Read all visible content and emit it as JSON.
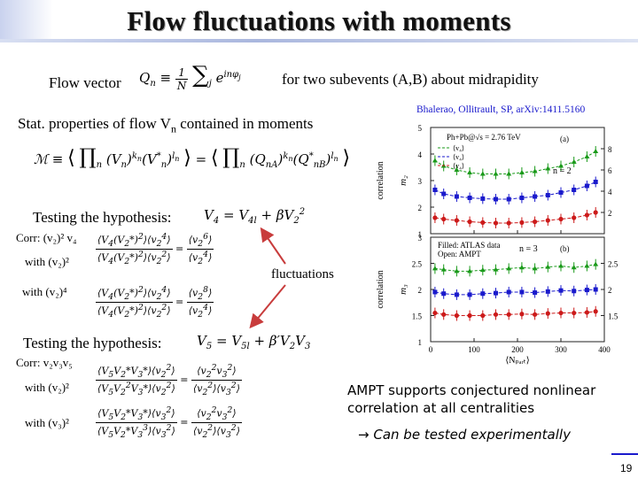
{
  "slide": {
    "title": "Flow fluctuations with moments",
    "page_number": "19"
  },
  "flow_vector": {
    "label": "Flow vector",
    "description": "for two subevents (A,B) about midrapidity"
  },
  "stat_props": {
    "text_before": "Stat. properties of flow V",
    "sub": "n",
    "text_after": " contained in moments"
  },
  "hyp1": {
    "label": "Testing the hypothesis:",
    "corr": "Corr: (v₂)² v₄",
    "with1": "with (v₂)²",
    "with2": "with (v₂)⁴"
  },
  "fluct_label": "fluctuations",
  "hyp2": {
    "label": "Testing the hypothesis:",
    "corr": "Corr: v₂v₃v₅",
    "with1": "with (v₂)²",
    "with2": "with (v₃)²"
  },
  "citation": "Bhalerao, Ollitrault, SP, arXiv:1411.5160",
  "conclusion": {
    "line1": "AMPT supports conjectured nonlinear",
    "line2": "correlation at all centralities",
    "line3": "Can be tested experimentally",
    "arrow": "→"
  },
  "chart_data": [
    {
      "type": "scatter",
      "title": "",
      "annotation": "Ph+Pb@√s = 2.76 TeV",
      "panel_label": "(a)",
      "n_label": "n = 2",
      "xlabel": "",
      "ylabel": "correlation",
      "ylabel_right": "m₂",
      "x_ticks": [
        "0",
        "100",
        "200",
        "300",
        "400"
      ],
      "ylim": [
        1,
        5
      ],
      "y_ticks_left": [
        "1",
        "2",
        "3",
        "4",
        "5"
      ],
      "y_ticks_right": [
        "2",
        "4",
        "6",
        "8"
      ],
      "legend": [
        "⟨v₄⟩",
        "⟨v₄⟩",
        "⟨v₄⟩"
      ],
      "series": [
        {
          "name": "",
          "color": "#1a9a1a",
          "x": [
            10,
            30,
            60,
            90,
            120,
            150,
            180,
            210,
            240,
            270,
            300,
            330,
            360,
            380
          ],
          "values": [
            3.75,
            3.55,
            3.4,
            3.3,
            3.25,
            3.25,
            3.25,
            3.3,
            3.35,
            3.45,
            3.55,
            3.7,
            3.9,
            4.1
          ]
        },
        {
          "name": "",
          "color": "#1a1acc",
          "x": [
            10,
            30,
            60,
            90,
            120,
            150,
            180,
            210,
            240,
            270,
            300,
            330,
            360,
            380
          ],
          "values": [
            2.65,
            2.5,
            2.4,
            2.35,
            2.32,
            2.3,
            2.3,
            2.35,
            2.4,
            2.45,
            2.55,
            2.65,
            2.8,
            2.95
          ]
        },
        {
          "name": "",
          "color": "#cc1a1a",
          "x": [
            10,
            30,
            60,
            90,
            120,
            150,
            180,
            210,
            240,
            270,
            300,
            330,
            360,
            380
          ],
          "values": [
            1.6,
            1.55,
            1.5,
            1.45,
            1.42,
            1.4,
            1.4,
            1.42,
            1.45,
            1.5,
            1.55,
            1.6,
            1.7,
            1.8
          ]
        }
      ]
    },
    {
      "type": "scatter",
      "title": "",
      "annotation_filled": "Filled: ATLAS data",
      "annotation_open": "Open: AMPT",
      "panel_label": "(b)",
      "n_label": "n = 3",
      "xlabel": "⟨Nₚₐᵣₜ⟩",
      "ylabel": "correlation",
      "ylabel_right": "m₃",
      "x_ticks": [
        "0",
        "100",
        "200",
        "300",
        "400"
      ],
      "ylim": [
        1,
        3
      ],
      "y_ticks_left": [
        "1",
        "1.5",
        "2",
        "2.5",
        "3"
      ],
      "y_ticks_right": [
        "1.5",
        "2",
        "2.5"
      ],
      "series": [
        {
          "name": "",
          "color": "#1a9a1a",
          "x": [
            10,
            30,
            60,
            90,
            120,
            150,
            180,
            210,
            240,
            270,
            300,
            330,
            360,
            380
          ],
          "values": [
            2.4,
            2.38,
            2.35,
            2.35,
            2.37,
            2.38,
            2.4,
            2.42,
            2.4,
            2.43,
            2.45,
            2.42,
            2.45,
            2.48
          ]
        },
        {
          "name": "",
          "color": "#1a1acc",
          "x": [
            10,
            30,
            60,
            90,
            120,
            150,
            180,
            210,
            240,
            270,
            300,
            330,
            360,
            380
          ],
          "values": [
            1.95,
            1.92,
            1.9,
            1.9,
            1.92,
            1.93,
            1.95,
            1.95,
            1.94,
            1.96,
            1.98,
            1.97,
            1.99,
            2.0
          ]
        },
        {
          "name": "",
          "color": "#cc1a1a",
          "x": [
            10,
            30,
            60,
            90,
            120,
            150,
            180,
            210,
            240,
            270,
            300,
            330,
            360,
            380
          ],
          "values": [
            1.55,
            1.52,
            1.5,
            1.5,
            1.5,
            1.52,
            1.52,
            1.53,
            1.52,
            1.54,
            1.55,
            1.55,
            1.56,
            1.58
          ]
        }
      ]
    }
  ]
}
